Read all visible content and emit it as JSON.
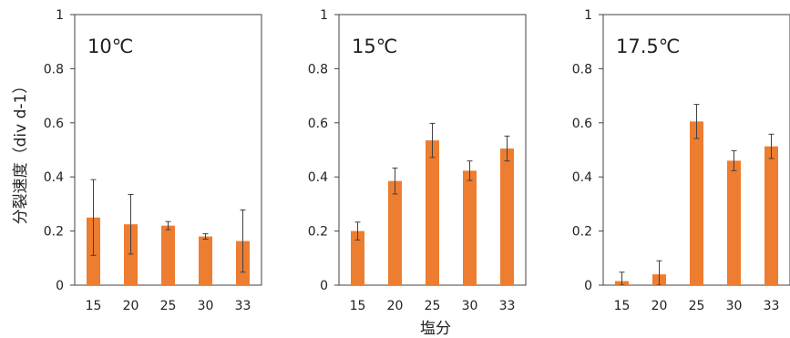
{
  "chart_data": [
    {
      "type": "bar",
      "title": "10℃",
      "categories": [
        "15",
        "20",
        "25",
        "30",
        "33"
      ],
      "values": [
        0.25,
        0.225,
        0.22,
        0.18,
        0.163
      ],
      "errors": [
        0.14,
        0.11,
        0.015,
        0.01,
        0.115
      ],
      "ylim": [
        0,
        1
      ],
      "yticks": [
        "0",
        "0.2",
        "0.4",
        "0.6",
        "0.8",
        "1"
      ],
      "color": "#ED7D31"
    },
    {
      "type": "bar",
      "title": "15℃",
      "categories": [
        "15",
        "20",
        "25",
        "30",
        "33"
      ],
      "values": [
        0.2,
        0.385,
        0.535,
        0.423,
        0.505
      ],
      "errors": [
        0.033,
        0.048,
        0.063,
        0.036,
        0.046
      ],
      "ylim": [
        0,
        1
      ],
      "yticks": [
        "0",
        "0.2",
        "0.4",
        "0.6",
        "0.8",
        "1"
      ],
      "color": "#ED7D31"
    },
    {
      "type": "bar",
      "title": "17.5℃",
      "categories": [
        "15",
        "20",
        "25",
        "30",
        "33"
      ],
      "values": [
        0.015,
        0.04,
        0.605,
        0.46,
        0.513
      ],
      "errors": [
        0.033,
        0.05,
        0.063,
        0.037,
        0.045
      ],
      "ylim": [
        0,
        1
      ],
      "yticks": [
        "0",
        "0.2",
        "0.4",
        "0.6",
        "0.8",
        "1"
      ],
      "color": "#ED7D31"
    }
  ],
  "ylabel": "分裂速度（div d-1）",
  "xlabel": "塩分"
}
